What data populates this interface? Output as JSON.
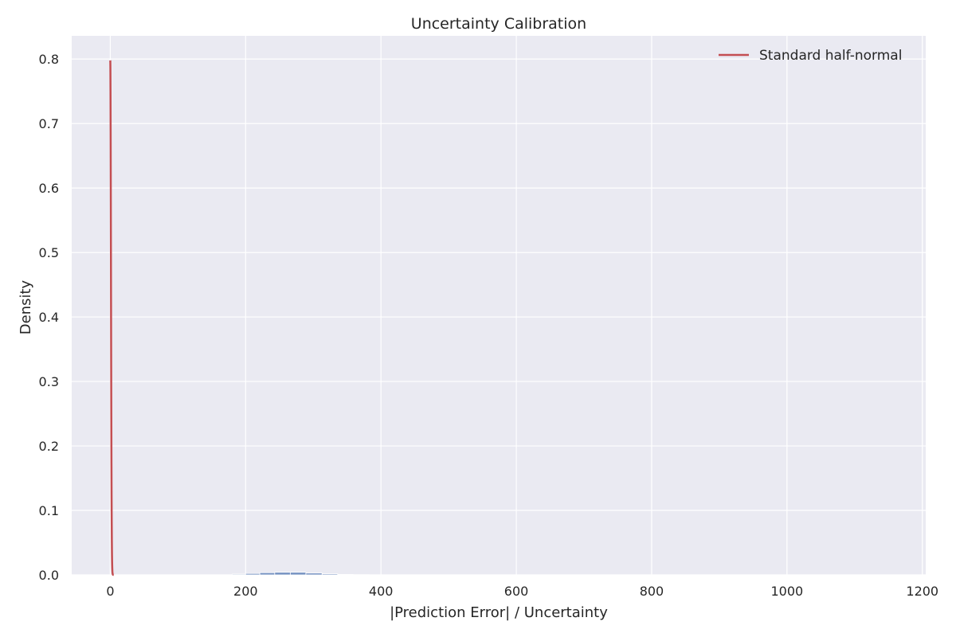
{
  "chart_data": {
    "type": "histogram",
    "title": "Uncertainty Calibration",
    "xlabel": "|Prediction Error| / Uncertainty",
    "ylabel": "Density",
    "xlim": [
      -57,
      1205
    ],
    "ylim": [
      0,
      0.836
    ],
    "xticks": [
      0,
      200,
      400,
      600,
      800,
      1000,
      1200
    ],
    "yticks": [
      0.0,
      0.1,
      0.2,
      0.3,
      0.4,
      0.5,
      0.6,
      0.7,
      0.8
    ],
    "xtick_labels": [
      "0",
      "200",
      "400",
      "600",
      "800",
      "1000",
      "1200"
    ],
    "ytick_labels": [
      "0.0",
      "0.1",
      "0.2",
      "0.3",
      "0.4",
      "0.5",
      "0.6",
      "0.7",
      "0.8"
    ],
    "grid": true,
    "legend_position": "top-right",
    "series": [
      {
        "name": "",
        "kind": "histogram",
        "color": "#4c72b0",
        "bin_edges": [
          180,
          200,
          221,
          243,
          266,
          289,
          313,
          336,
          359,
          383
        ],
        "values": [
          0.0012,
          0.0022,
          0.0034,
          0.004,
          0.004,
          0.0028,
          0.0016,
          0.0008,
          0.0004
        ]
      },
      {
        "name": "Standard half-normal",
        "kind": "line",
        "color": "#c44e52",
        "x_range": [
          0,
          5
        ],
        "formula": "sqrt(2/pi) * exp(-x^2/2)"
      }
    ]
  }
}
